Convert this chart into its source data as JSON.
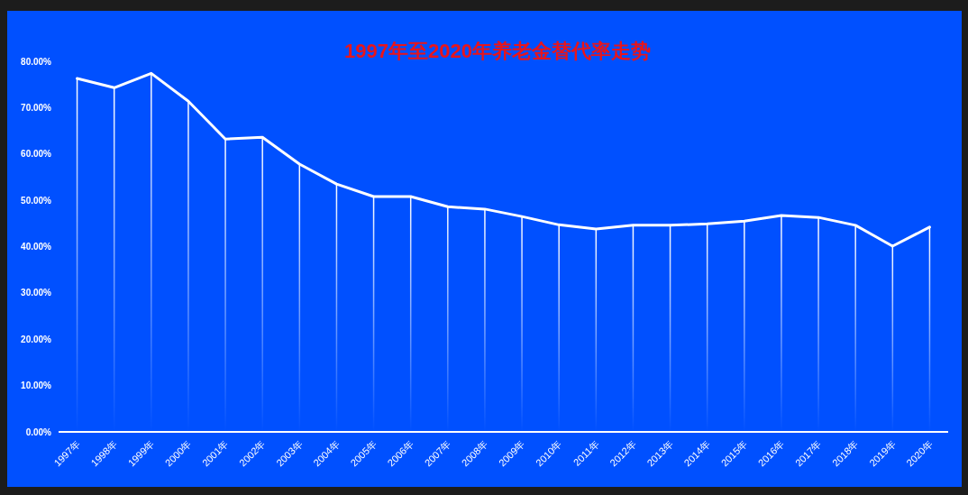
{
  "chart_data": {
    "type": "line",
    "title": "1997年至2020年养老金替代率走势",
    "categories": [
      "1997年",
      "1998年",
      "1999年",
      "2000年",
      "2001年",
      "2002年",
      "2003年",
      "2004年",
      "2005年",
      "2006年",
      "2007年",
      "2008年",
      "2009年",
      "2010年",
      "2011年",
      "2012年",
      "2013年",
      "2014年",
      "2015年",
      "2016年",
      "2017年",
      "2018年",
      "2019年",
      "2020年"
    ],
    "series": [
      {
        "type": "bar",
        "color": "#ffffff",
        "values": [
          76.3,
          74.3,
          77.4,
          71.4,
          63.2,
          63.6,
          57.8,
          53.5,
          50.8,
          50.8,
          48.6,
          48.1,
          46.5,
          44.7,
          43.8,
          44.6,
          44.6,
          44.9,
          45.5,
          46.7,
          46.3,
          44.6,
          40.1,
          44.2
        ]
      },
      {
        "color": "#ffffff",
        "values": [
          76.3,
          74.3,
          77.4,
          71.4,
          63.2,
          63.6,
          57.8,
          53.5,
          50.8,
          50.8,
          48.6,
          48.1,
          46.5,
          44.7,
          43.8,
          44.6,
          44.6,
          44.9,
          45.5,
          46.7,
          46.3,
          44.6,
          40.1,
          44.2
        ]
      }
    ],
    "ylim": [
      0,
      80
    ],
    "yticks": [
      {
        "value": 0,
        "label": "0.00%"
      },
      {
        "value": 10,
        "label": "10.00%"
      },
      {
        "value": 20,
        "label": "20.00%"
      },
      {
        "value": 30,
        "label": "30.00%"
      },
      {
        "value": 40,
        "label": "40.00%"
      },
      {
        "value": 50,
        "label": "50.00%"
      },
      {
        "value": 60,
        "label": "60.00%"
      },
      {
        "value": 70,
        "label": "70.00%"
      },
      {
        "value": 80,
        "label": "80.00%"
      }
    ],
    "grid": false,
    "marker": "none",
    "line_style": "solid"
  }
}
